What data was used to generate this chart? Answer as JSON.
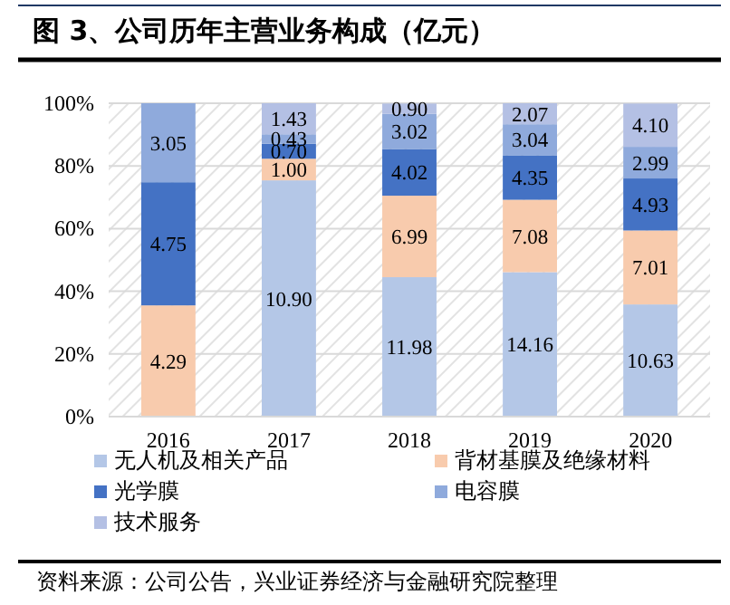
{
  "chart_data": {
    "type": "bar",
    "stacked": true,
    "title": "图 3、公司历年主营业务构成（亿元）",
    "annotations": [
      "资料来源：公司公告，兴业证券经济与金融研究院整理",
      "4.29",
      "4.75",
      "3.05",
      "10.90",
      "1.00",
      "0.70",
      "0.43",
      "1.43",
      "11.98",
      "6.99",
      "4.02",
      "3.02",
      "0.90",
      "14.16",
      "7.08",
      "4.35",
      "3.04",
      "2.07",
      "10.63",
      "7.01",
      "4.93",
      "2.99",
      "4.10"
    ],
    "categories": [
      "2016",
      "2017",
      "2018",
      "2019",
      "2020"
    ],
    "series": [
      {
        "name": "无人机及相关产品",
        "color": "#b4c7e7",
        "values": [
          null,
          75.4,
          44.5,
          46.1,
          35.8
        ]
      },
      {
        "name": "背材基膜及绝缘材料",
        "color": "#f8cbad",
        "values": [
          35.5,
          6.9,
          26.0,
          23.1,
          23.6
        ]
      },
      {
        "name": "光学膜",
        "color": "#4472c4",
        "values": [
          39.3,
          4.8,
          14.9,
          14.2,
          16.6
        ]
      },
      {
        "name": "电容膜",
        "color": "#8faadc",
        "values": [
          25.2,
          3.0,
          11.2,
          9.9,
          10.1
        ]
      },
      {
        "name": "技术服务",
        "color": "#b4c0e4",
        "values": [
          null,
          9.9,
          3.3,
          6.7,
          13.8
        ]
      }
    ],
    "ylim": [
      0,
      100
    ],
    "yticks": [
      {
        "value": 0,
        "label": "0%"
      },
      {
        "value": 20,
        "label": "20%"
      },
      {
        "value": 40,
        "label": "40%"
      },
      {
        "value": 60,
        "label": "60%"
      },
      {
        "value": 80,
        "label": "80%"
      },
      {
        "value": 100,
        "label": "100%"
      }
    ],
    "grid": "y",
    "legend": "bottom"
  }
}
